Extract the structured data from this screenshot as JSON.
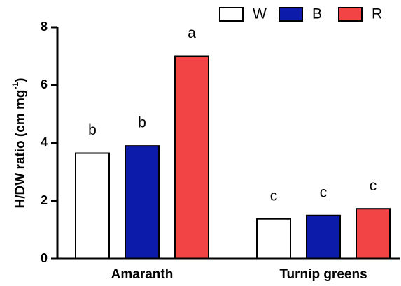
{
  "chart_data": {
    "type": "bar",
    "ylabel": {
      "text": "H/DW ratio (cm mg",
      "superscript": "-1",
      "suffix": ")"
    },
    "categories": [
      "Amaranth",
      "Turnip greens"
    ],
    "series": [
      {
        "name": "W",
        "color": "#ffffff",
        "values": [
          3.65,
          1.38
        ],
        "annotations": [
          "b",
          "c"
        ]
      },
      {
        "name": "B",
        "color": "#0d1bab",
        "values": [
          3.9,
          1.5
        ],
        "annotations": [
          "b",
          "c"
        ]
      },
      {
        "name": "R",
        "color": "#f24444",
        "values": [
          7.0,
          1.73
        ],
        "annotations": [
          "a",
          "c"
        ]
      }
    ],
    "ylim": [
      0,
      8
    ],
    "yticks": [
      0,
      2,
      4,
      6,
      8
    ],
    "grid": false,
    "legend": "top-right"
  }
}
